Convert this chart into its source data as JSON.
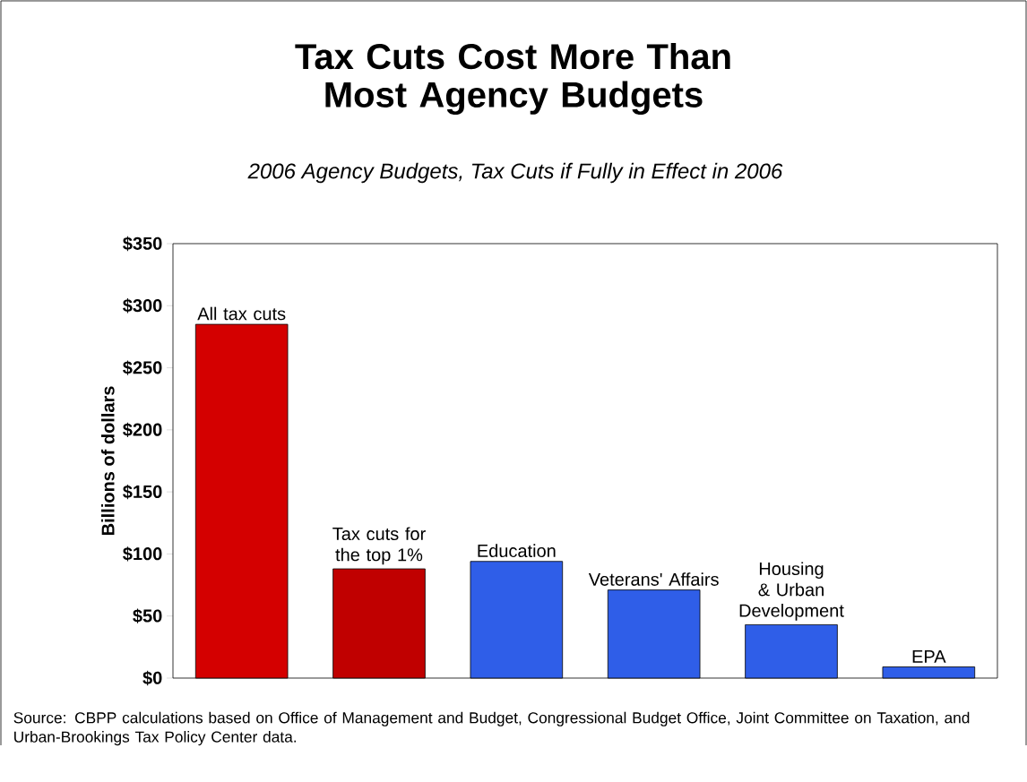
{
  "chart_data": {
    "type": "bar",
    "title": "Tax Cuts Cost More Than Most Agency Budgets",
    "subtitle": "2006 Agency Budgets, Tax Cuts if Fully in Effect in 2006",
    "ylabel": "Billions of dollars",
    "categories": [
      "All tax cuts",
      "Tax cuts for the top 1%",
      "Education",
      "Veterans' Affairs",
      "Housing & Urban Development",
      "EPA"
    ],
    "values": [
      285,
      88,
      94,
      71,
      43,
      9
    ],
    "colors": [
      "#d40000",
      "#c00000",
      "#2f5ee8",
      "#2f5ee8",
      "#2f5ee8",
      "#2f5ee8"
    ],
    "ylim": [
      0,
      350
    ],
    "yticks": [
      {
        "value": 0,
        "label": "$0"
      },
      {
        "value": 50,
        "label": "$50"
      },
      {
        "value": 100,
        "label": "$100"
      },
      {
        "value": 150,
        "label": "$150"
      },
      {
        "value": 200,
        "label": "$200"
      },
      {
        "value": 250,
        "label": "$250"
      },
      {
        "value": 300,
        "label": "$300"
      },
      {
        "value": 350,
        "label": "$350"
      }
    ],
    "annotations": [
      "Source: CBPP calculations based on Office of Management and Budget, Congressional Budget Office, Joint Committee on Taxation, and Urban-Brookings Tax Policy Center data."
    ]
  }
}
